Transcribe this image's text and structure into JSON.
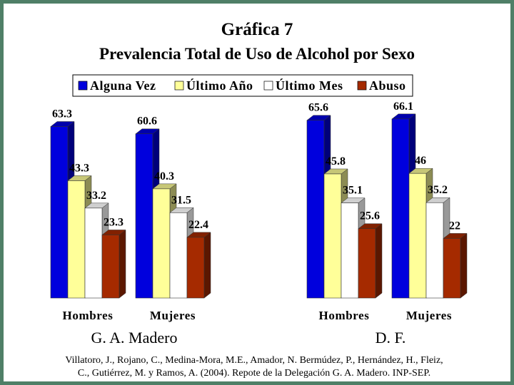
{
  "title": "Gráfica 7",
  "subtitle": "Prevalencia Total de Uso de Alcohol por Sexo",
  "citation": {
    "line1": "Villatoro, J., Rojano, C., Medina-Mora, M.E., Amador, N. Bermúdez, P., Hernández, H., Fleiz,",
    "line2": "C., Gutiérrez, M. y Ramos, A. (2004). Repote de la Delegación G. A. Madero. INP-SEP."
  },
  "chart_data": {
    "type": "bar",
    "title": "Gráfica 7",
    "subtitle": "Prevalencia Total de Uso de Alcohol por Sexo",
    "legend_position": "top",
    "grid": false,
    "ylim": [
      0,
      70
    ],
    "series": [
      {
        "name": "Alguna Vez",
        "color": "#0000dd"
      },
      {
        "name": "Último Año",
        "color": "#ffff99"
      },
      {
        "name": "Último Mes",
        "color": "#ffffff"
      },
      {
        "name": "Abuso",
        "color": "#a52a00"
      }
    ],
    "groups": [
      {
        "label": "G. A. Madero",
        "categories": [
          {
            "label": "Hombres",
            "values": [
              63.3,
              43.3,
              33.2,
              23.3
            ],
            "labels": [
              "63.3",
              "43.3",
              "33.2",
              "23.3"
            ]
          },
          {
            "label": "Mujeres",
            "values": [
              60.6,
              40.3,
              31.5,
              22.4
            ],
            "labels": [
              "60.6",
              "40.3",
              "31.5",
              "22.4"
            ]
          }
        ]
      },
      {
        "label": "D. F.",
        "categories": [
          {
            "label": "Hombres",
            "values": [
              65.6,
              45.8,
              35.1,
              25.6
            ],
            "labels": [
              "65.6",
              "45.8",
              "35.1",
              "25.6"
            ]
          },
          {
            "label": "Mujeres",
            "values": [
              66.1,
              46,
              35.2,
              22
            ],
            "labels": [
              "66.1",
              "46",
              "35.2",
              "22"
            ]
          }
        ]
      }
    ]
  }
}
